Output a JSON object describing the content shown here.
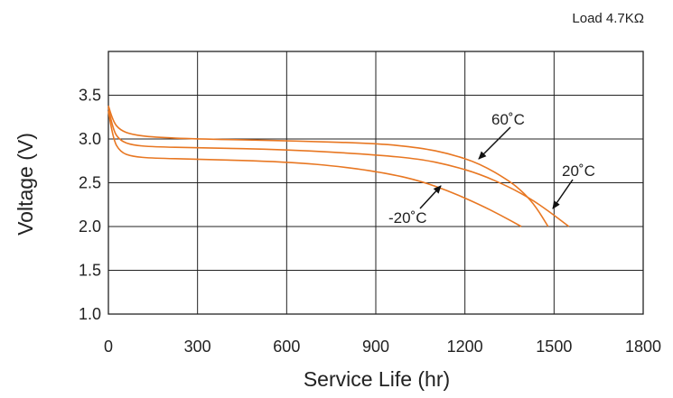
{
  "chart_data": {
    "type": "line",
    "title": "",
    "annotation_load": "Load 4.7KΩ",
    "xlabel": "Service Life (hr)",
    "ylabel": "Voltage (V)",
    "xlim": [
      0,
      1800
    ],
    "ylim": [
      1.0,
      4.0
    ],
    "xticks": [
      "0",
      "300",
      "600",
      "900",
      "1200",
      "1500",
      "1800"
    ],
    "yticks": [
      "1.0",
      "1.5",
      "2.0",
      "2.5",
      "3.0",
      "3.5"
    ],
    "grid": true,
    "line_color": "#E87722",
    "series": [
      {
        "name": "60˚C",
        "label_text": "60˚C",
        "x": [
          0,
          15,
          40,
          80,
          150,
          300,
          600,
          900,
          1050,
          1150,
          1250,
          1350,
          1400,
          1440,
          1480
        ],
        "y": [
          3.38,
          3.2,
          3.1,
          3.05,
          3.02,
          3.0,
          2.98,
          2.95,
          2.9,
          2.83,
          2.72,
          2.52,
          2.38,
          2.22,
          2.0
        ]
      },
      {
        "name": "20˚C",
        "label_text": "20˚C",
        "x": [
          0,
          15,
          40,
          80,
          150,
          300,
          600,
          900,
          1050,
          1150,
          1250,
          1350,
          1420,
          1480,
          1550
        ],
        "y": [
          3.36,
          3.1,
          2.98,
          2.93,
          2.91,
          2.9,
          2.88,
          2.82,
          2.77,
          2.7,
          2.6,
          2.45,
          2.32,
          2.18,
          2.0
        ]
      },
      {
        "name": "-20˚C",
        "label_text": "-20˚C",
        "x": [
          0,
          15,
          40,
          80,
          150,
          300,
          600,
          800,
          950,
          1050,
          1150,
          1250,
          1320,
          1390
        ],
        "y": [
          3.32,
          3.0,
          2.85,
          2.8,
          2.78,
          2.77,
          2.74,
          2.68,
          2.6,
          2.52,
          2.4,
          2.25,
          2.13,
          2.0
        ]
      }
    ]
  }
}
